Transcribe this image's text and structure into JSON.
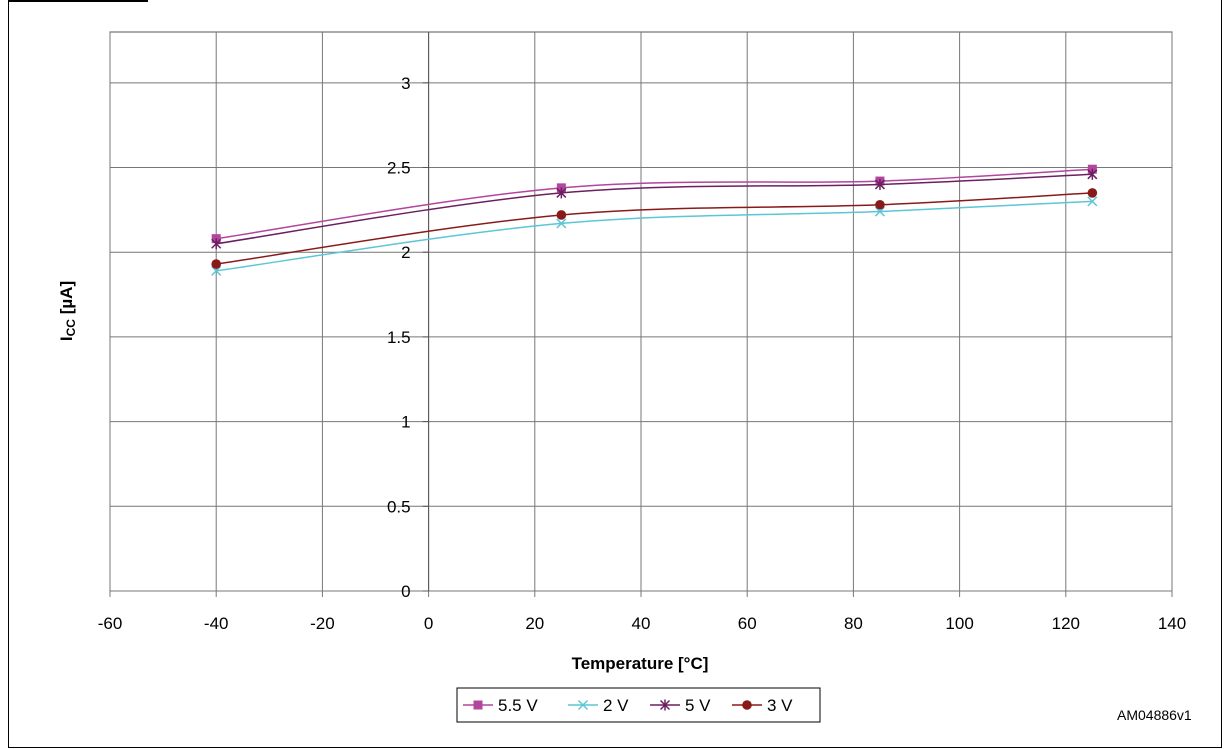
{
  "chart_data": {
    "type": "line",
    "title": "",
    "xlabel": "Temperature [°C]",
    "ylabel_main": "I",
    "ylabel_sub": "CC",
    "ylabel_unit": " [µA]",
    "xlim": [
      -60,
      140
    ],
    "ylim": [
      0,
      3.3
    ],
    "xticks": [
      -60,
      -40,
      -20,
      0,
      20,
      40,
      60,
      80,
      100,
      120,
      140
    ],
    "yticks": [
      0,
      0.5,
      1,
      1.5,
      2,
      2.5,
      3
    ],
    "grid": true,
    "legend_position": "bottom",
    "series": [
      {
        "name": "5.5 V",
        "color": "#b2459e",
        "marker": "square",
        "x": [
          -40,
          25,
          85,
          125
        ],
        "values": [
          2.08,
          2.38,
          2.42,
          2.49
        ]
      },
      {
        "name": "2 V",
        "color": "#5cc6d6",
        "marker": "x",
        "x": [
          -40,
          25,
          85,
          125
        ],
        "values": [
          1.89,
          2.17,
          2.24,
          2.3
        ]
      },
      {
        "name": "5 V",
        "color": "#6b1f5f",
        "marker": "star",
        "x": [
          -40,
          25,
          85,
          125
        ],
        "values": [
          2.05,
          2.35,
          2.4,
          2.46
        ]
      },
      {
        "name": "3 V",
        "color": "#8a1a1a",
        "marker": "circle",
        "x": [
          -40,
          25,
          85,
          125
        ],
        "values": [
          1.93,
          2.22,
          2.28,
          2.35
        ]
      }
    ]
  },
  "watermark": "AM04886v1"
}
